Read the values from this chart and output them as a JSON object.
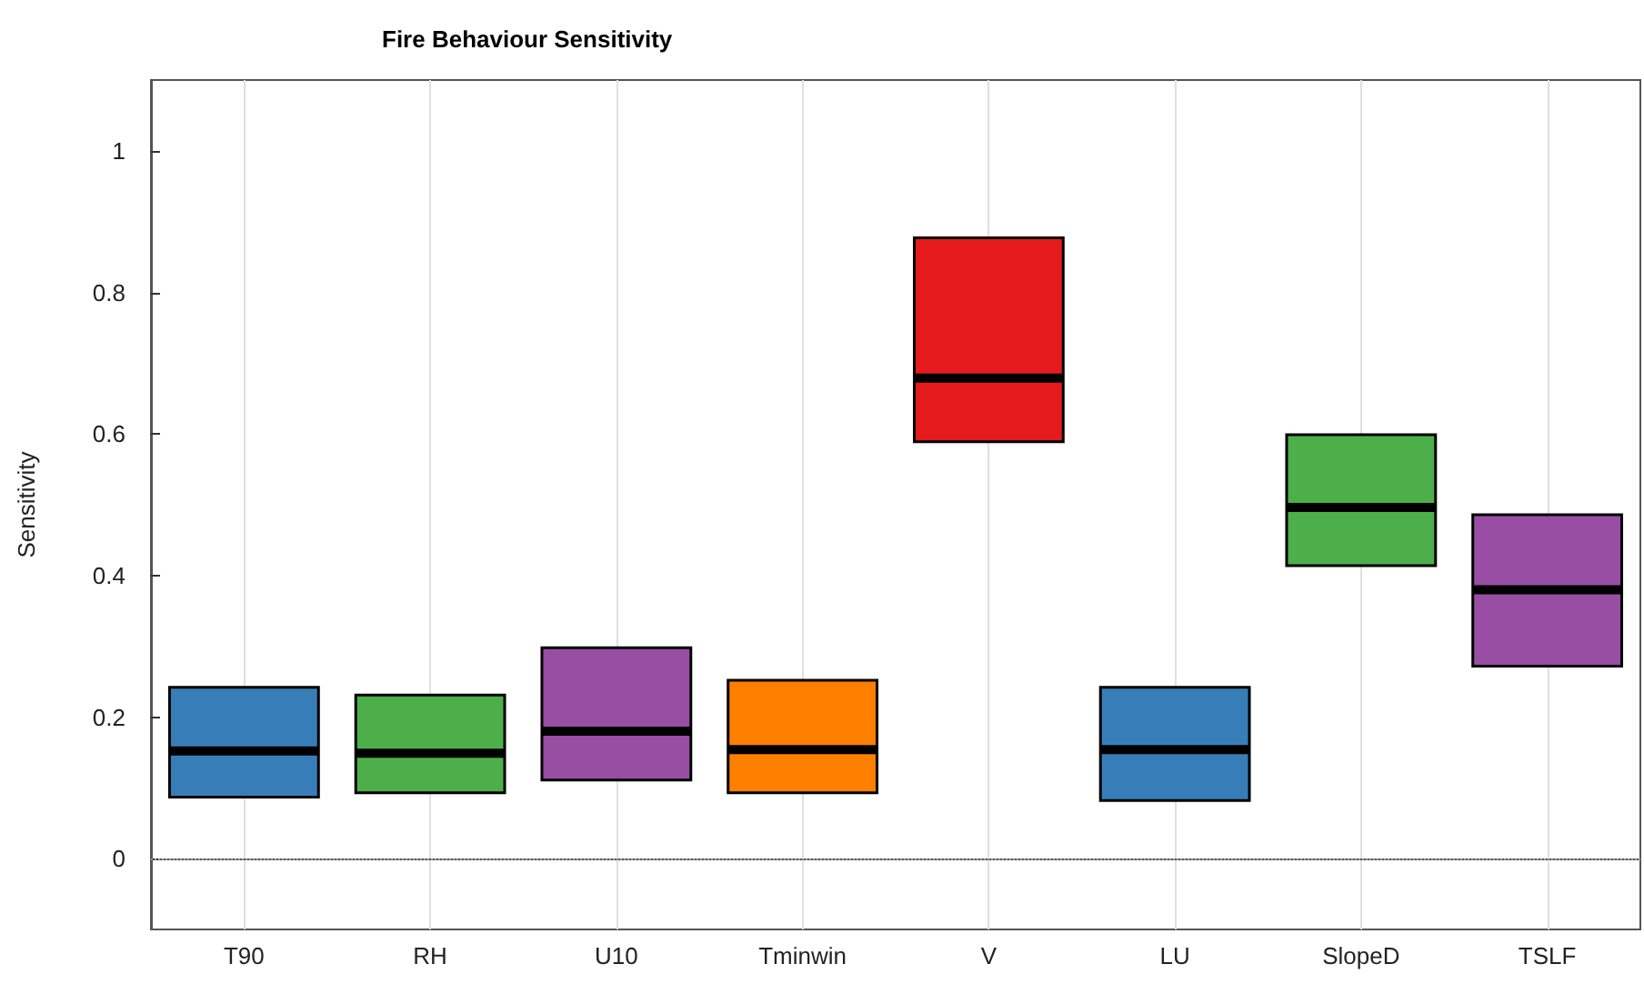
{
  "chart_data": {
    "type": "box",
    "title": "Fire Behaviour Sensitivity",
    "ylabel": "Sensitivity",
    "categories": [
      "T90",
      "RH",
      "U10",
      "Tminwin",
      "V",
      "LU",
      "SlopeD",
      "TSLF"
    ],
    "colors": [
      "#377eb8",
      "#4daf4a",
      "#984ea3",
      "#ff7f00",
      "#e41a1c",
      "#377eb8",
      "#4daf4a",
      "#984ea3"
    ],
    "boxes": [
      {
        "low": 0.087,
        "q1": 0.087,
        "median": 0.152,
        "q3": 0.242,
        "high": 0.242
      },
      {
        "low": 0.093,
        "q1": 0.093,
        "median": 0.149,
        "q3": 0.231,
        "high": 0.231
      },
      {
        "low": 0.111,
        "q1": 0.111,
        "median": 0.18,
        "q3": 0.298,
        "high": 0.298
      },
      {
        "low": 0.093,
        "q1": 0.093,
        "median": 0.154,
        "q3": 0.252,
        "high": 0.252
      },
      {
        "low": 0.589,
        "q1": 0.589,
        "median": 0.679,
        "q3": 0.877,
        "high": 0.877
      },
      {
        "low": 0.082,
        "q1": 0.082,
        "median": 0.154,
        "q3": 0.242,
        "high": 0.242
      },
      {
        "low": 0.414,
        "q1": 0.414,
        "median": 0.496,
        "q3": 0.599,
        "high": 0.599
      },
      {
        "low": 0.272,
        "q1": 0.272,
        "median": 0.38,
        "q3": 0.486,
        "high": 0.486
      }
    ],
    "ylim": [
      -0.1,
      1.1
    ],
    "yticks": [
      0,
      0.2,
      0.4,
      0.6,
      0.8,
      1
    ],
    "grid": "x",
    "ref_lines": [
      {
        "axis": "y",
        "value": 0,
        "color": "#999999",
        "line_style": "dotted"
      }
    ]
  }
}
